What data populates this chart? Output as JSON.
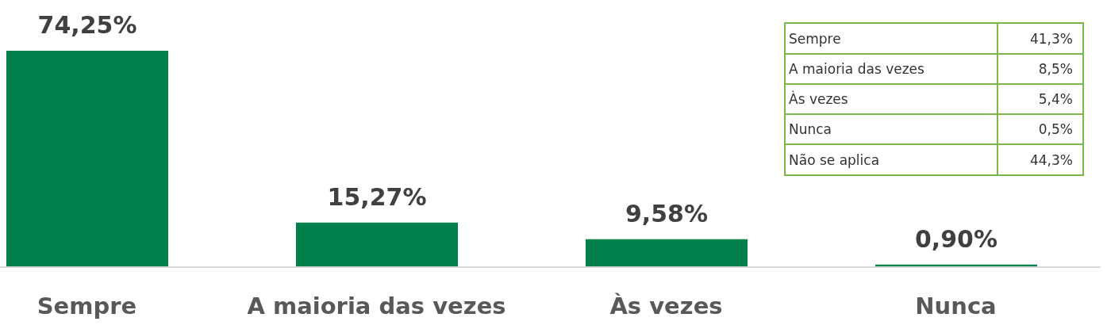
{
  "chart_data": [
    {
      "type": "bar",
      "categories": [
        "Sempre",
        "A maioria das vezes",
        "Às vezes",
        "Nunca"
      ],
      "values": [
        74.25,
        15.27,
        9.58,
        0.9
      ],
      "value_labels": [
        "74,25%",
        "15,27%",
        "9,58%",
        "0,90%"
      ],
      "color": "#00804b"
    },
    {
      "type": "other",
      "categories": [
        "Sempre",
        "A maioria das vezes",
        "Às vezes",
        "Nunca",
        "Não se aplica"
      ],
      "value_labels": [
        "41,3%",
        "8,5%",
        "5,4%",
        "0,5%",
        "44,3%"
      ],
      "color": "#7ab648"
    }
  ]
}
